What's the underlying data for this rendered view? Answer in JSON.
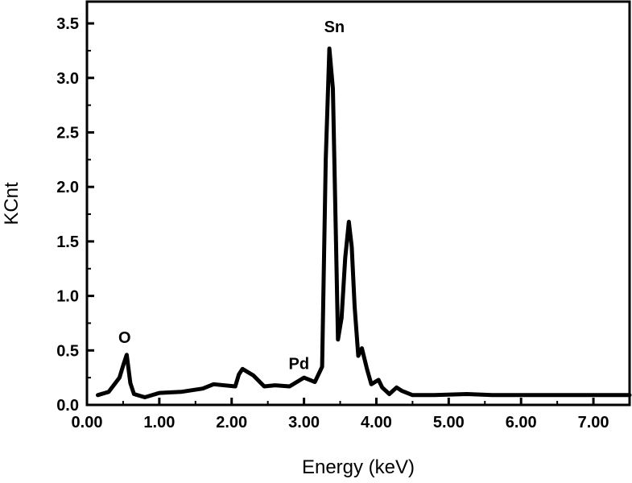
{
  "chart_data": {
    "type": "line",
    "title": "",
    "xlabel": "Energy (keV)",
    "ylabel": "KCnt",
    "xlim": [
      0,
      7.5
    ],
    "ylim": [
      0,
      3.7
    ],
    "x_ticks": [
      "0.00",
      "1.00",
      "2.00",
      "3.00",
      "4.00",
      "5.00",
      "6.00",
      "7.00"
    ],
    "y_ticks": [
      "0.0",
      "0.5",
      "1.0",
      "1.5",
      "2.0",
      "2.5",
      "3.0",
      "3.5"
    ],
    "grid": false,
    "legend": "none",
    "line_color": "#000000",
    "series": [
      {
        "x": [
          0.15,
          0.3,
          0.45,
          0.5,
          0.55,
          0.6,
          0.65,
          0.8,
          1.0,
          1.3,
          1.6,
          1.75,
          2.05,
          2.1,
          2.15,
          2.3,
          2.45,
          2.6,
          2.8,
          3.0,
          3.15,
          3.25,
          3.3,
          3.35,
          3.4,
          3.47,
          3.52,
          3.57,
          3.62,
          3.66,
          3.7,
          3.75,
          3.8,
          3.87,
          3.93,
          4.03,
          4.08,
          4.18,
          4.28,
          4.35,
          4.5,
          4.8,
          5.25,
          5.6,
          7.5
        ],
        "y": [
          0.09,
          0.12,
          0.25,
          0.36,
          0.46,
          0.2,
          0.1,
          0.07,
          0.11,
          0.12,
          0.15,
          0.19,
          0.17,
          0.28,
          0.33,
          0.27,
          0.17,
          0.18,
          0.17,
          0.25,
          0.21,
          0.35,
          2.25,
          3.27,
          2.9,
          0.6,
          0.8,
          1.35,
          1.68,
          1.45,
          0.9,
          0.45,
          0.52,
          0.33,
          0.19,
          0.23,
          0.16,
          0.1,
          0.16,
          0.13,
          0.09,
          0.09,
          0.1,
          0.09,
          0.09
        ]
      }
    ],
    "annotations": [
      {
        "text": "O",
        "x": 0.52,
        "y": 0.57
      },
      {
        "text": "Pd",
        "x": 2.93,
        "y": 0.33
      },
      {
        "text": "Sn",
        "x": 3.42,
        "y": 3.42
      }
    ]
  }
}
